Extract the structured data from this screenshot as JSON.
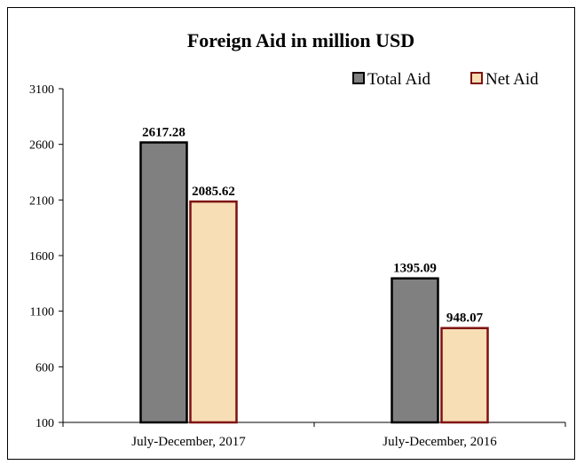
{
  "chart_data": {
    "type": "bar",
    "title": "Foreign Aid in million USD",
    "xlabel": "",
    "ylabel": "",
    "categories": [
      "July-December, 2017",
      "July-December, 2016"
    ],
    "series": [
      {
        "name": "Total Aid",
        "values": [
          2617.28,
          1395.09
        ],
        "color": "#808080",
        "stroke": "#000000"
      },
      {
        "name": "Net Aid",
        "values": [
          2085.62,
          948.07
        ],
        "color": "#f7deb5",
        "stroke": "#7f1010"
      }
    ],
    "data_labels": [
      [
        "2617.28",
        "1395.09"
      ],
      [
        "2085.62",
        "948.07"
      ]
    ],
    "ylim": [
      100,
      3100
    ],
    "yticks": [
      "100",
      "600",
      "1100",
      "1600",
      "2100",
      "2600",
      "3100"
    ],
    "grid": false,
    "legend_position": "top-right"
  }
}
